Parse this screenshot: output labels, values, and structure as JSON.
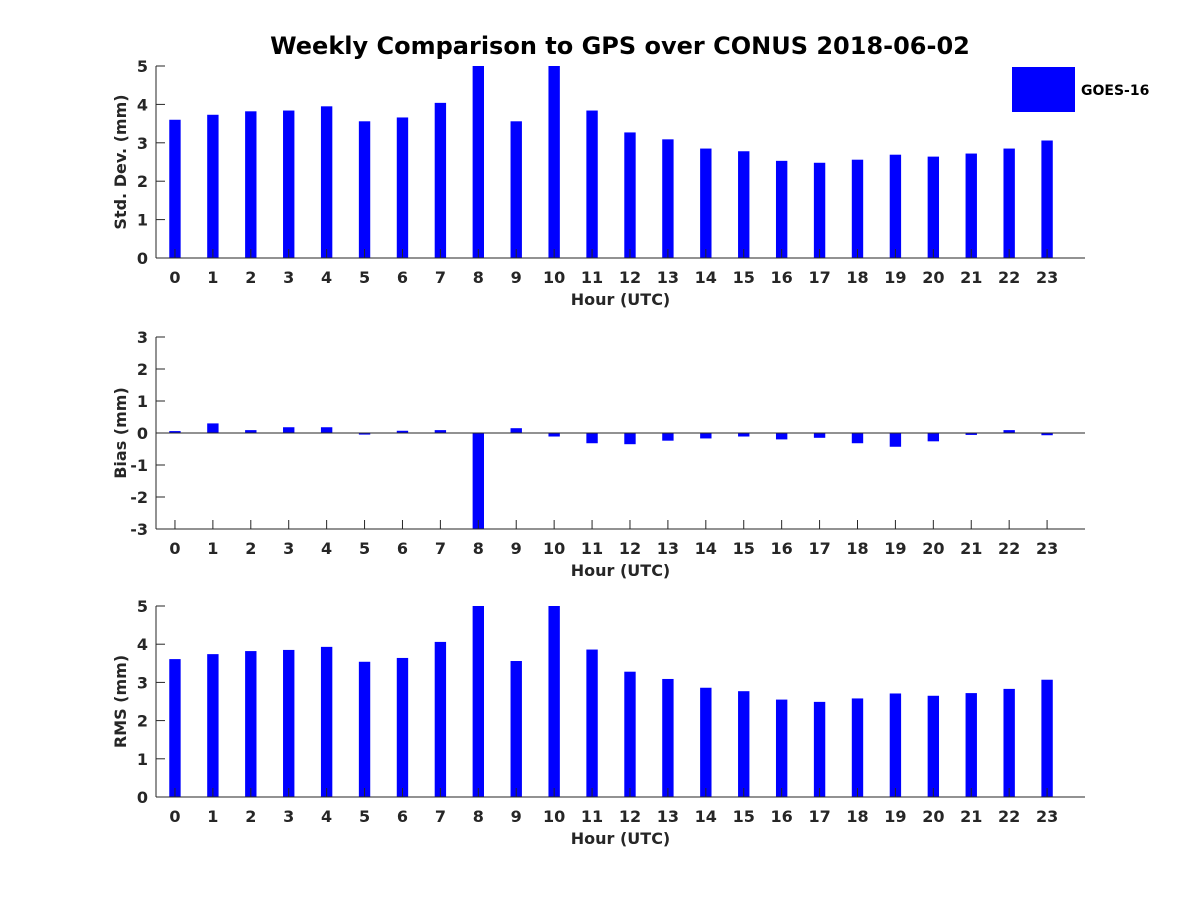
{
  "title": "Weekly Comparison to GPS over CONUS 2018-06-02",
  "colors": {
    "bar": "#0000ff",
    "axis": "#262626",
    "background": "#ffffff"
  },
  "legend": {
    "label": "GOES-16",
    "position": "top-right"
  },
  "chart_data": [
    {
      "type": "bar",
      "series_name": "GOES-16",
      "xlabel": "Hour (UTC)",
      "ylabel": "Std. Dev. (mm)",
      "ylim": [
        0,
        5
      ],
      "yticks": [
        0,
        1,
        2,
        3,
        4,
        5
      ],
      "categories": [
        "0",
        "1",
        "2",
        "3",
        "4",
        "5",
        "6",
        "7",
        "8",
        "9",
        "10",
        "11",
        "12",
        "13",
        "14",
        "15",
        "16",
        "17",
        "18",
        "19",
        "20",
        "21",
        "22",
        "23"
      ],
      "values": [
        3.6,
        3.73,
        3.82,
        3.84,
        3.95,
        3.56,
        3.66,
        4.04,
        5.0,
        3.56,
        5.0,
        3.84,
        3.27,
        3.09,
        2.85,
        2.78,
        2.53,
        2.48,
        2.56,
        2.69,
        2.64,
        2.72,
        2.85,
        3.06
      ]
    },
    {
      "type": "bar",
      "series_name": "GOES-16",
      "xlabel": "Hour (UTC)",
      "ylabel": "Bias (mm)",
      "ylim": [
        -3,
        3
      ],
      "yticks": [
        -3,
        -2,
        -1,
        0,
        1,
        2,
        3
      ],
      "categories": [
        "0",
        "1",
        "2",
        "3",
        "4",
        "5",
        "6",
        "7",
        "8",
        "9",
        "10",
        "11",
        "12",
        "13",
        "14",
        "15",
        "16",
        "17",
        "18",
        "19",
        "20",
        "21",
        "22",
        "23"
      ],
      "values": [
        0.06,
        0.3,
        0.09,
        0.18,
        0.18,
        -0.05,
        0.07,
        0.09,
        -3.0,
        0.15,
        -0.11,
        -0.32,
        -0.35,
        -0.24,
        -0.17,
        -0.11,
        -0.2,
        -0.15,
        -0.32,
        -0.43,
        -0.26,
        -0.06,
        0.09,
        -0.07
      ]
    },
    {
      "type": "bar",
      "series_name": "GOES-16",
      "xlabel": "Hour (UTC)",
      "ylabel": "RMS (mm)",
      "ylim": [
        0,
        5
      ],
      "yticks": [
        0,
        1,
        2,
        3,
        4,
        5
      ],
      "categories": [
        "0",
        "1",
        "2",
        "3",
        "4",
        "5",
        "6",
        "7",
        "8",
        "9",
        "10",
        "11",
        "12",
        "13",
        "14",
        "15",
        "16",
        "17",
        "18",
        "19",
        "20",
        "21",
        "22",
        "23"
      ],
      "values": [
        3.61,
        3.74,
        3.82,
        3.85,
        3.93,
        3.54,
        3.64,
        4.06,
        5.0,
        3.56,
        5.0,
        3.86,
        3.28,
        3.09,
        2.86,
        2.77,
        2.55,
        2.49,
        2.58,
        2.71,
        2.65,
        2.72,
        2.83,
        3.07
      ]
    }
  ]
}
